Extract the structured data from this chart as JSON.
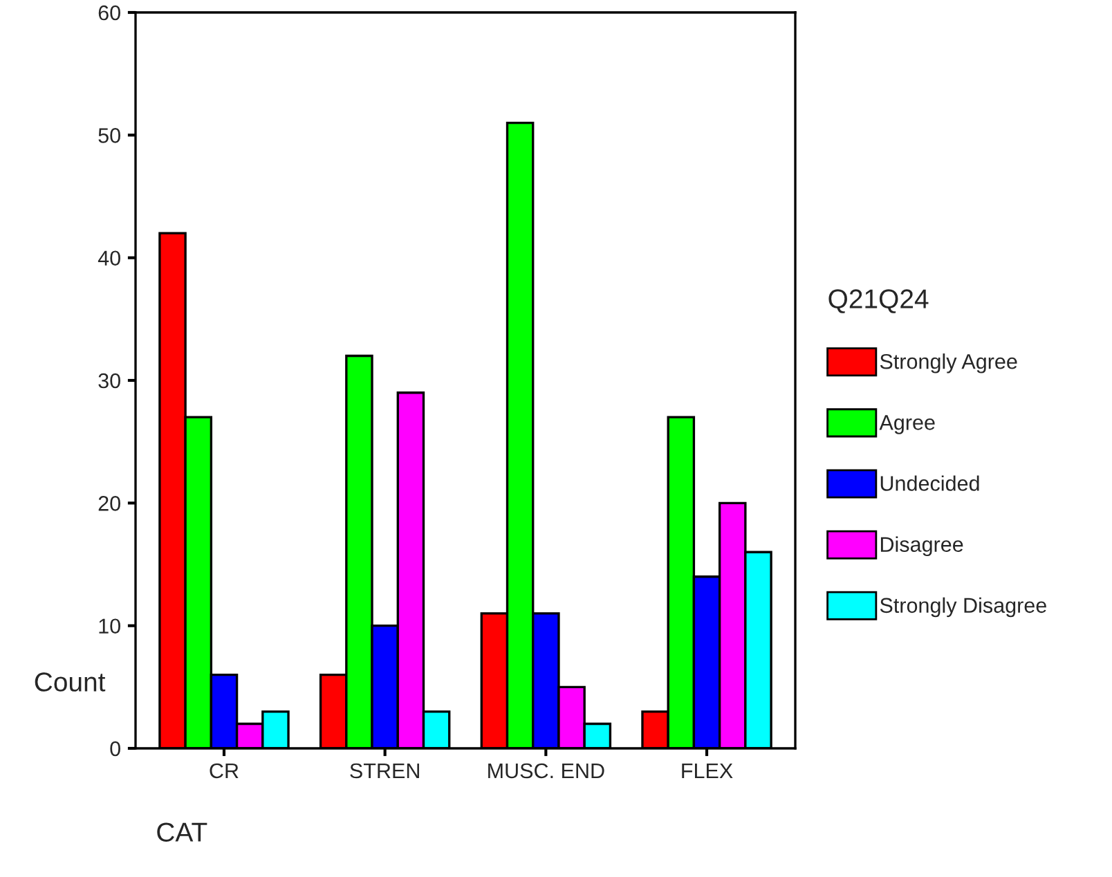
{
  "chart_data": {
    "type": "bar",
    "xlabel": "CAT",
    "ylabel": "Count",
    "legend_title": "Q21Q24",
    "categories": [
      "CR",
      "STREN",
      "MUSC. END",
      "FLEX"
    ],
    "series": [
      {
        "name": "Strongly Agree",
        "color": "#ff0000",
        "values": [
          42,
          6,
          11,
          3
        ]
      },
      {
        "name": "Agree",
        "color": "#00ff00",
        "values": [
          27,
          32,
          51,
          27
        ]
      },
      {
        "name": "Undecided",
        "color": "#0000ff",
        "values": [
          6,
          10,
          11,
          14
        ]
      },
      {
        "name": "Disagree",
        "color": "#ff00ff",
        "values": [
          2,
          29,
          5,
          20
        ]
      },
      {
        "name": "Strongly Disagree",
        "color": "#00ffff",
        "values": [
          3,
          3,
          2,
          16
        ]
      }
    ],
    "ylim": [
      0,
      60
    ],
    "yticks": [
      0,
      10,
      20,
      30,
      40,
      50,
      60
    ],
    "grid": false,
    "legend": "right"
  }
}
